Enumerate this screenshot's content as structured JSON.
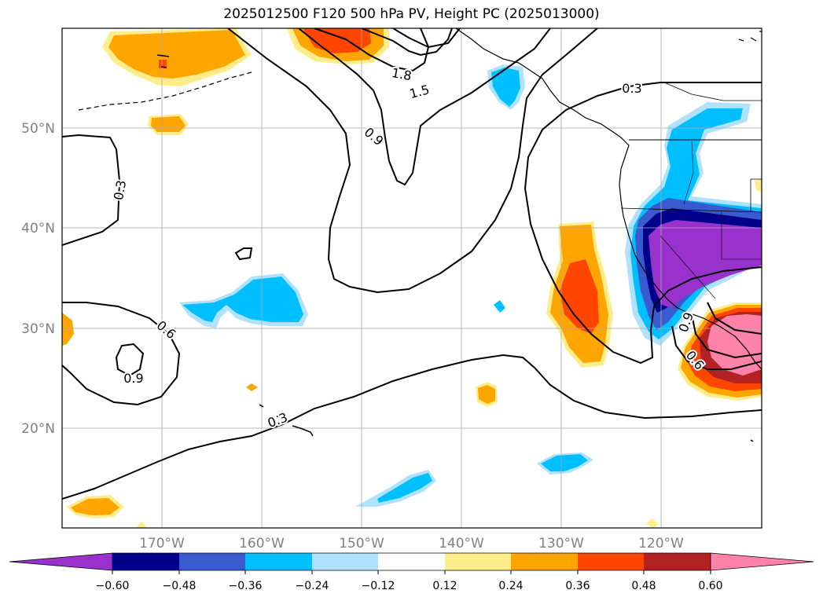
{
  "title": "2025012500 F120 500 hPa PV, Height PC (2025013000)",
  "latitude_labels": [
    "50°N",
    "40°N",
    "30°N",
    "20°N"
  ],
  "longitude_labels": [
    "170°W",
    "160°W",
    "150°W",
    "140°W",
    "130°W",
    "120°W"
  ],
  "contour_labels": [
    "1.8",
    "1.5",
    "0.9",
    "0.3",
    "0.3",
    "0.6",
    "0.9",
    "0.3",
    "0.6",
    "0.9"
  ],
  "colorbar": {
    "colors": [
      "#9932cc",
      "#00008b",
      "#3a5bcf",
      "#00bfff",
      "#b0e2ff",
      "#ffffff",
      "#ffec8b",
      "#ffa500",
      "#ff4500",
      "#b22222",
      "#ff82ab"
    ],
    "ticks": [
      "−0.60",
      "−0.48",
      "−0.36",
      "−0.24",
      "−0.12",
      "0.12",
      "0.24",
      "0.36",
      "0.48",
      "0.60"
    ]
  }
}
